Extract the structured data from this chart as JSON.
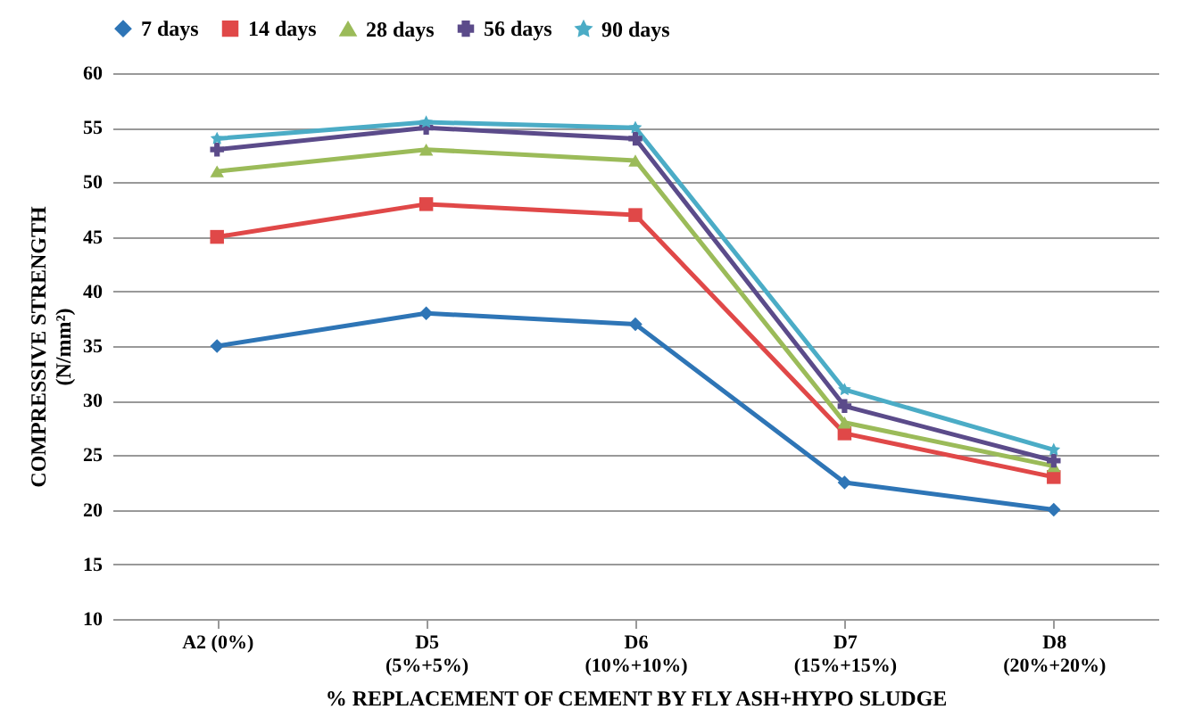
{
  "chart_data": {
    "type": "line",
    "xlabel": "% REPLACEMENT OF CEMENT BY FLY ASH+HYPO SLUDGE",
    "ylabel": "COMPRESSIVE STRENGTH\n(N/mm²)",
    "categories": [
      "A2 (0%)",
      "D5\n(5%+5%)",
      "D6\n(10%+10%)",
      "D7\n(15%+15%)",
      "D8\n(20%+20%)"
    ],
    "series": [
      {
        "name": "7 days",
        "color": "#2e75b6",
        "marker": "diamond",
        "values": [
          35,
          38,
          37,
          22.5,
          20
        ]
      },
      {
        "name": "14 days",
        "color": "#e04848",
        "marker": "square",
        "values": [
          45,
          48,
          47,
          27,
          23
        ]
      },
      {
        "name": "28 days",
        "color": "#9bbb59",
        "marker": "triangle",
        "values": [
          51,
          53,
          52,
          28,
          24
        ]
      },
      {
        "name": "56 days",
        "color": "#5b4b8a",
        "marker": "cross",
        "values": [
          53,
          55,
          54,
          29.5,
          24.5
        ]
      },
      {
        "name": "90 days",
        "color": "#4bacc6",
        "marker": "star",
        "values": [
          54,
          55.5,
          55,
          31,
          25.5
        ]
      }
    ],
    "ylim": [
      10,
      60
    ],
    "yticks": [
      10,
      15,
      20,
      25,
      30,
      35,
      40,
      45,
      50,
      55,
      60
    ],
    "grid": "y",
    "legend": "top",
    "line_style": "solid"
  }
}
